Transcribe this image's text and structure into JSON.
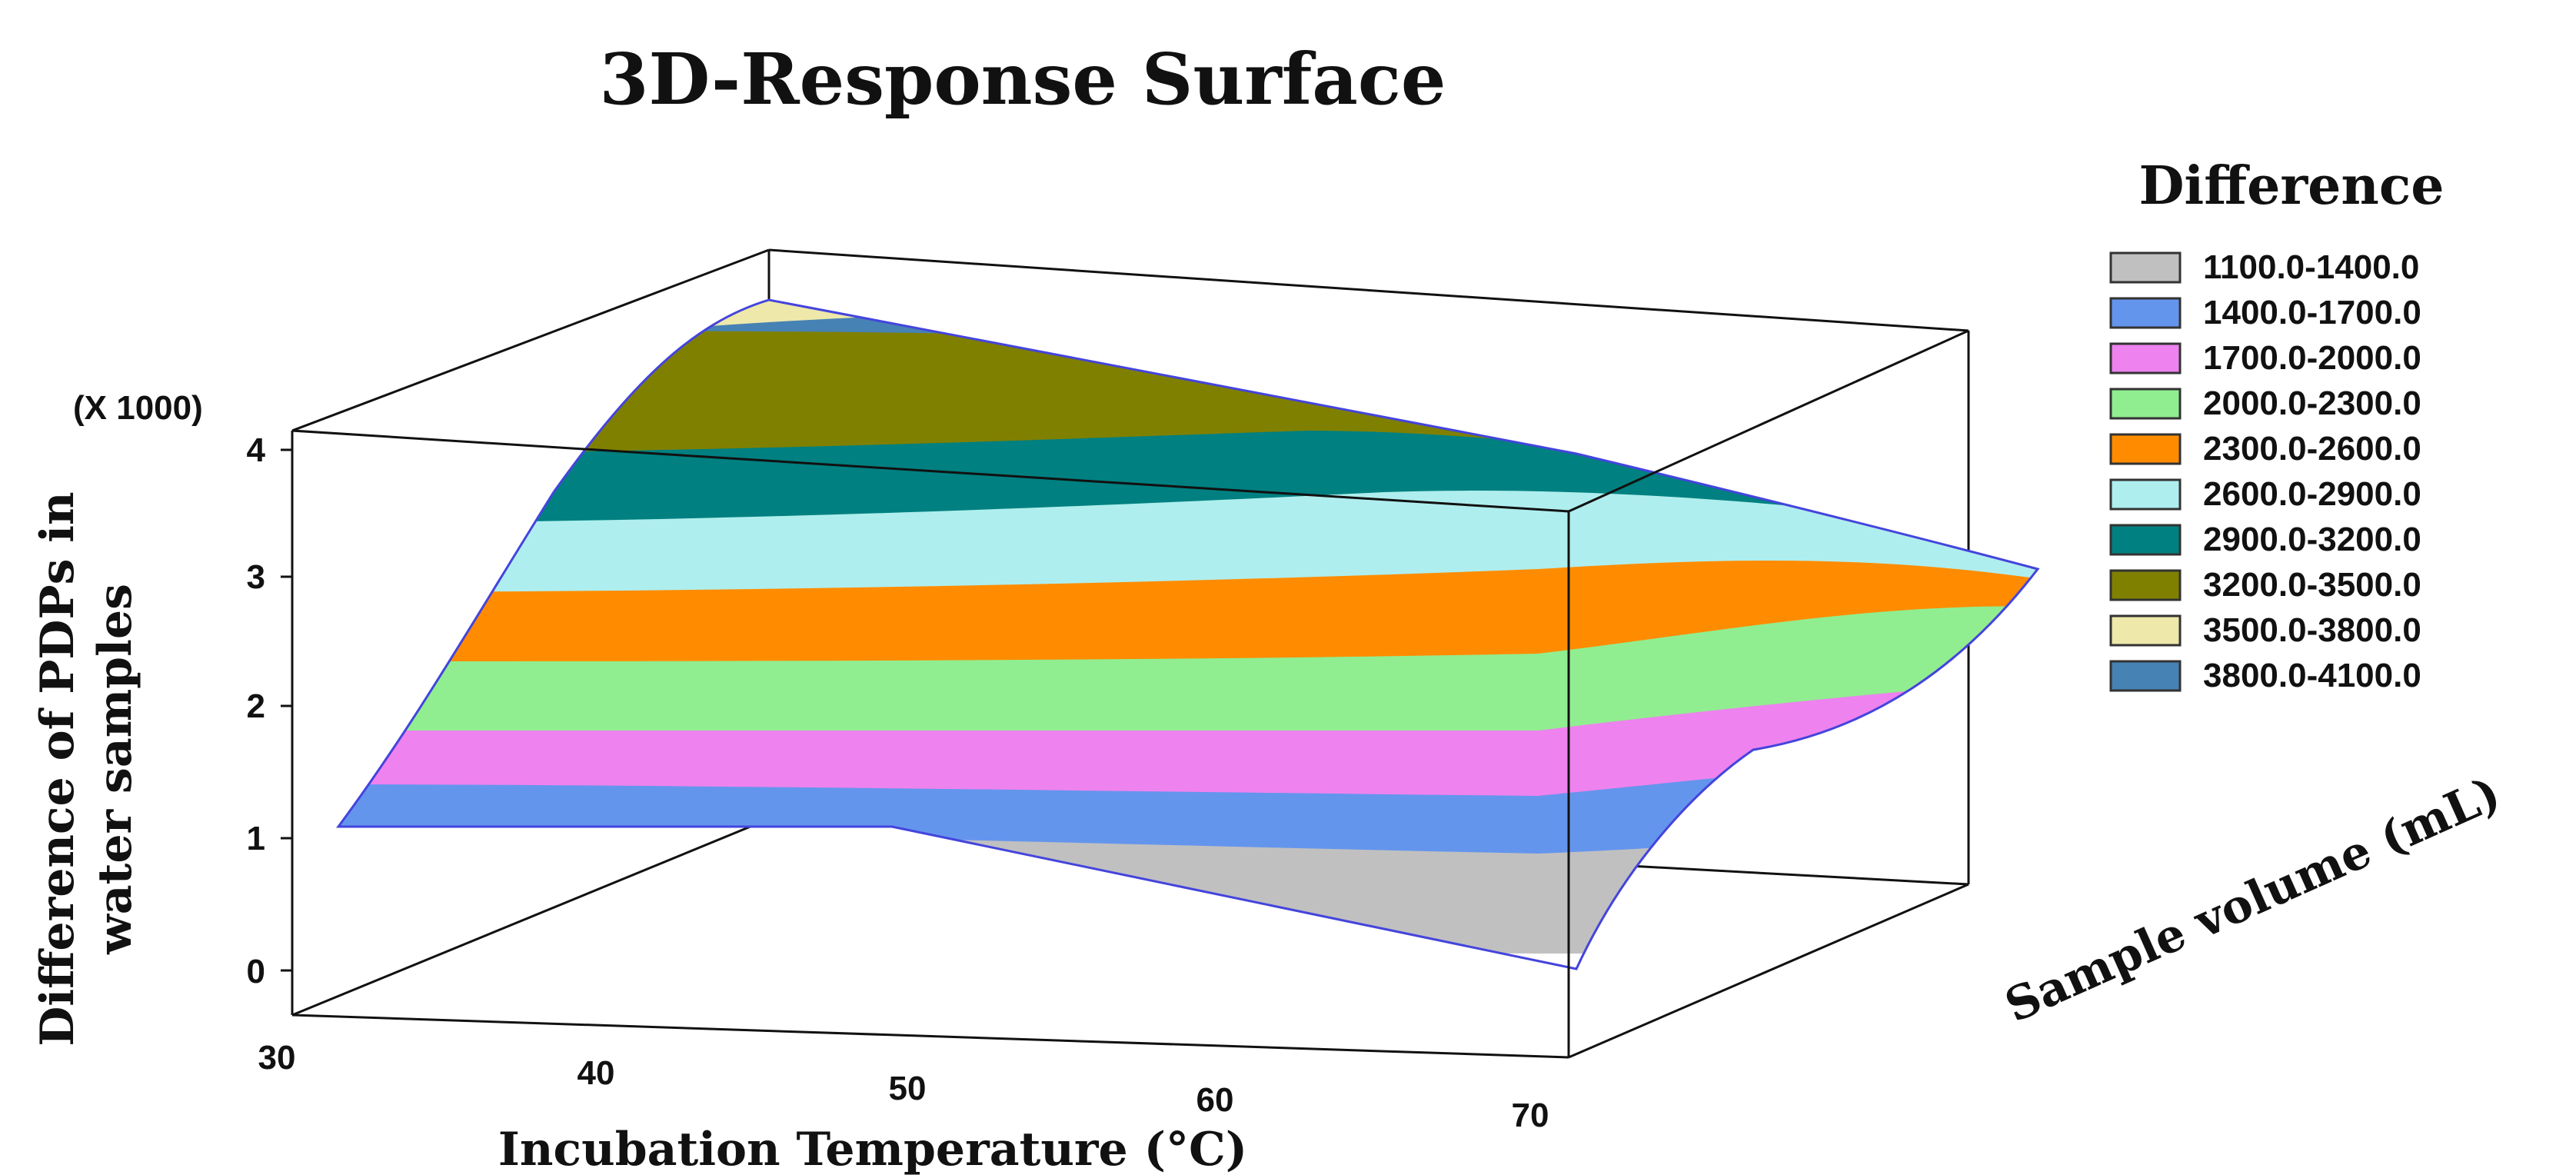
{
  "chart_data": {
    "type": "surface",
    "title": "3D-Response Surface",
    "x_axis": {
      "label": "Incubation Temperature (°C)",
      "ticks": [
        "30",
        "40",
        "50",
        "60",
        "70"
      ]
    },
    "y_axis": {
      "label": "Sample volume (mL)"
    },
    "z_axis": {
      "label_line1": "Difference of PDPs in",
      "label_line2": "water samples",
      "multiplier": "(X 1000)",
      "ticks": [
        "0",
        "1",
        "2",
        "3",
        "4"
      ]
    },
    "legend": {
      "title": "Difference",
      "entries": [
        {
          "label": "1100.0-1400.0",
          "color": "#c0c0c0"
        },
        {
          "label": "1400.0-1700.0",
          "color": "#6495ed"
        },
        {
          "label": "1700.0-2000.0",
          "color": "#ee82ee"
        },
        {
          "label": "2000.0-2300.0",
          "color": "#90ee90"
        },
        {
          "label": "2300.0-2600.0",
          "color": "#ff8c00"
        },
        {
          "label": "2600.0-2900.0",
          "color": "#afeeee"
        },
        {
          "label": "2900.0-3200.0",
          "color": "#008080"
        },
        {
          "label": "3200.0-3500.0",
          "color": "#808000"
        },
        {
          "label": "3500.0-3800.0",
          "color": "#eee8aa"
        },
        {
          "label": "3800.0-4100.0",
          "color": "#4682b4"
        }
      ]
    }
  }
}
